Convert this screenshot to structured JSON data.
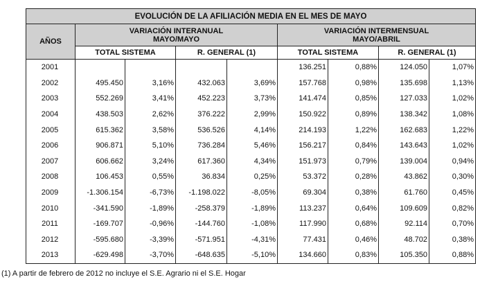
{
  "title": "EVOLUCIÓN DE LA AFILIACIÓN MEDIA EN EL MES DE MAYO",
  "col_years": "AÑOS",
  "group1": {
    "line1": "VARIACIÓN INTERANUAL",
    "line2": "MAYO/MAYO"
  },
  "group2": {
    "line1": "VARIACIÓN INTERMENSUAL",
    "line2": "MAYO/ABRIL"
  },
  "sub": [
    "TOTAL SISTEMA",
    "R. GENERAL (1)",
    "TOTAL SISTEMA",
    "R. GENERAL (1)"
  ],
  "rows": [
    [
      "2001",
      "",
      "",
      "",
      "",
      "136.251",
      "0,88%",
      "124.050",
      "1,07%"
    ],
    [
      "2002",
      "495.450",
      "3,16%",
      "432.063",
      "3,69%",
      "157.768",
      "0,98%",
      "135.698",
      "1,13%"
    ],
    [
      "2003",
      "552.269",
      "3,41%",
      "452.223",
      "3,73%",
      "141.474",
      "0,85%",
      "127.033",
      "1,02%"
    ],
    [
      "2004",
      "438.503",
      "2,62%",
      "376.222",
      "2,99%",
      "150.922",
      "0,89%",
      "138.342",
      "1,08%"
    ],
    [
      "2005",
      "615.362",
      "3,58%",
      "536.526",
      "4,14%",
      "214.193",
      "1,22%",
      "162.683",
      "1,22%"
    ],
    [
      "2006",
      "906.871",
      "5,10%",
      "736.284",
      "5,46%",
      "156.217",
      "0,84%",
      "143.643",
      "1,02%"
    ],
    [
      "2007",
      "606.662",
      "3,24%",
      "617.360",
      "4,34%",
      "151.973",
      "0,79%",
      "139.004",
      "0,94%"
    ],
    [
      "2008",
      "106.453",
      "0,55%",
      "36.834",
      "0,25%",
      "53.372",
      "0,28%",
      "43.862",
      "0,30%"
    ],
    [
      "2009",
      "-1.306.154",
      "-6,73%",
      "-1.198.022",
      "-8,05%",
      "69.304",
      "0,38%",
      "61.760",
      "0,45%"
    ],
    [
      "2010",
      "-341.590",
      "-1,89%",
      "-258.379",
      "-1,89%",
      "113.237",
      "0,64%",
      "109.609",
      "0,82%"
    ],
    [
      "2011",
      "-169.707",
      "-0,96%",
      "-144.760",
      "-1,08%",
      "117.990",
      "0,68%",
      "92.114",
      "0,70%"
    ],
    [
      "2012",
      "-595.680",
      "-3,39%",
      "-571.951",
      "-4,31%",
      "77.431",
      "0,46%",
      "48.702",
      "0,38%"
    ],
    [
      "2013",
      "-629.498",
      "-3,70%",
      "-648.635",
      "-5,10%",
      "134.660",
      "0,83%",
      "105.350",
      "0,88%"
    ]
  ],
  "footnote": "(1) A partir de febrero de 2012 no incluye el S.E. Agrario ni el S.E. Hogar"
}
